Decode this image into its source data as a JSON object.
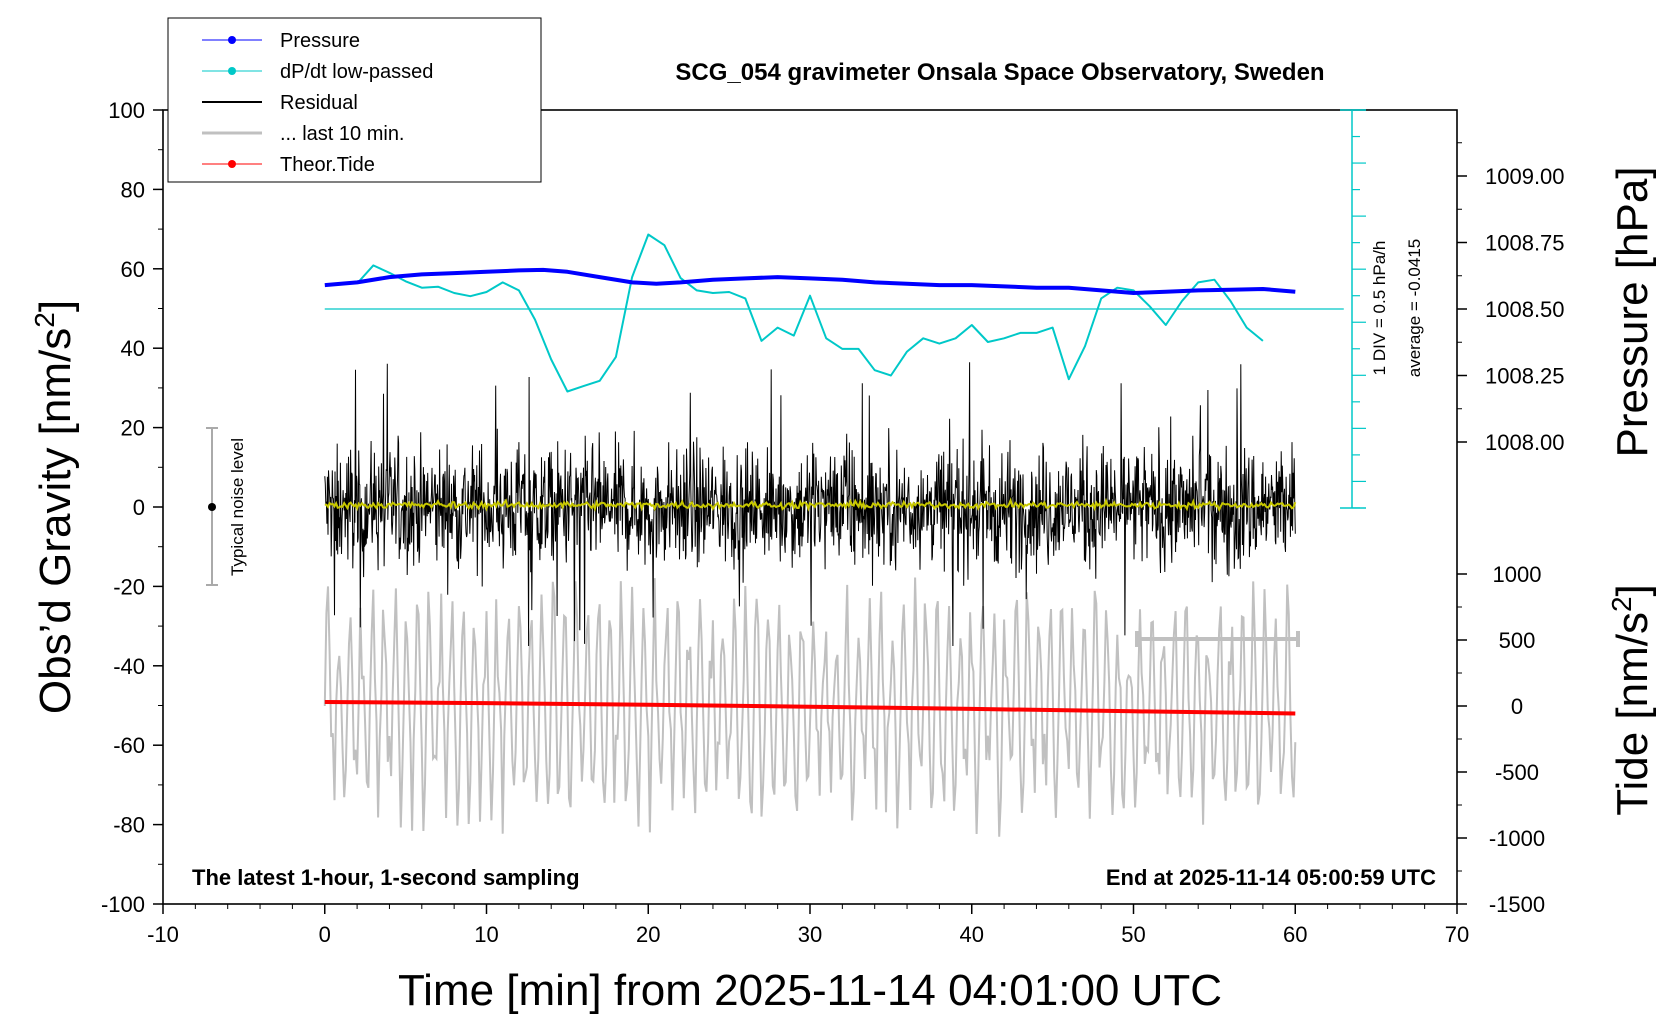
{
  "chart_data": {
    "type": "line",
    "title": "SCG_054 gravimeter Onsala Space Observatory, Sweden",
    "xlabel": "Time [min] from 2025-11-14 04:01:00 UTC",
    "ylabel_left": "Obs'd Gravity [nm/s²]",
    "ylabel_right_pressure": "Pressure [hPa]",
    "ylabel_right_tide": "Tide [nm/s²]",
    "xlim": [
      -10,
      70
    ],
    "ylim_left": [
      -100,
      100
    ],
    "x_ticks": [
      "-10",
      "0",
      "10",
      "20",
      "30",
      "40",
      "50",
      "60",
      "70"
    ],
    "y_ticks_left": [
      "100",
      "80",
      "60",
      "40",
      "20",
      "0",
      "-20",
      "-40",
      "-60",
      "-80",
      "-100"
    ],
    "pressure_ticks": [
      "1009.00",
      "1008.75",
      "1008.50",
      "1008.25",
      "1008.00"
    ],
    "tide_ticks": [
      "1000",
      "500",
      "0",
      "-500",
      "-1000",
      "-1500"
    ],
    "legend": {
      "position": "top-left",
      "entries": [
        {
          "label": "Pressure",
          "color": "#0000ff",
          "marker": true
        },
        {
          "label": "dP/dt low-passed",
          "color": "#00c8c8",
          "marker": true
        },
        {
          "label": "Residual",
          "color": "#000000",
          "marker": false
        },
        {
          "label": "... last 10 min.",
          "color": "#c0c0c0",
          "marker": false
        },
        {
          "label": "Theor.Tide",
          "color": "#ff0000",
          "marker": true
        }
      ]
    },
    "annotations": {
      "bottom_left": "The latest 1-hour, 1-second sampling",
      "bottom_right": "End at 2025-11-14 05:00:59 UTC",
      "noise_label": "Typical noise level",
      "dpdt_scale": "1 DIV = 0.5 hPa/h",
      "dpdt_average": "average = -0.0415"
    },
    "series": [
      {
        "name": "Pressure",
        "unit": "hPa",
        "color": "#0000ff",
        "x": [
          0,
          2,
          4,
          6,
          8,
          10,
          12,
          13.5,
          15,
          17,
          19,
          20.5,
          22,
          24,
          26,
          28,
          30,
          32,
          34,
          36,
          38,
          40,
          42,
          44,
          46,
          48,
          50,
          52,
          54,
          56,
          58,
          60
        ],
        "y": [
          1008.59,
          1008.6,
          1008.62,
          1008.63,
          1008.635,
          1008.64,
          1008.645,
          1008.647,
          1008.64,
          1008.62,
          1008.6,
          1008.595,
          1008.6,
          1008.61,
          1008.615,
          1008.62,
          1008.615,
          1008.61,
          1008.6,
          1008.595,
          1008.59,
          1008.59,
          1008.585,
          1008.58,
          1008.58,
          1008.57,
          1008.56,
          1008.565,
          1008.57,
          1008.572,
          1008.575,
          1008.565
        ]
      },
      {
        "name": "dP/dt low-passed",
        "color": "#00c8c8",
        "average": -0.0415,
        "x": [
          2,
          3,
          4,
          5,
          6,
          7,
          8,
          9,
          10,
          11,
          12,
          13,
          14,
          15,
          16,
          17,
          18,
          19,
          20,
          21,
          22,
          23,
          24,
          25,
          26,
          27,
          28,
          29,
          30,
          31,
          32,
          33,
          34,
          35,
          36,
          37,
          38,
          39,
          40,
          41,
          42,
          43,
          44,
          45,
          46,
          47,
          48,
          49,
          50,
          51,
          52,
          53,
          54,
          55,
          56,
          57,
          58
        ],
        "y": [
          0.48,
          0.82,
          0.68,
          0.52,
          0.4,
          0.42,
          0.3,
          0.24,
          0.32,
          0.5,
          0.35,
          -0.2,
          -0.95,
          -1.55,
          -1.45,
          -1.35,
          -0.9,
          0.6,
          1.4,
          1.2,
          0.58,
          0.35,
          0.3,
          0.32,
          0.2,
          -0.6,
          -0.35,
          -0.5,
          0.25,
          -0.55,
          -0.75,
          -0.75,
          -1.15,
          -1.25,
          -0.8,
          -0.55,
          -0.65,
          -0.55,
          -0.3,
          -0.62,
          -0.55,
          -0.45,
          -0.45,
          -0.35,
          -1.32,
          -0.7,
          0.2,
          0.4,
          0.35,
          0.05,
          -0.3,
          0.15,
          0.5,
          0.55,
          0.15,
          -0.35,
          -0.6
        ]
      },
      {
        "name": "Residual",
        "unit": "nm/s²",
        "color": "#000000",
        "x_range": [
          0,
          60
        ],
        "mean": 0,
        "typical_amplitude": 20,
        "max": 40,
        "min": -35
      },
      {
        "name": "... last 10 min.",
        "color": "#c0c0c0",
        "x_range": [
          50,
          60
        ],
        "typical_range": [
          -1000,
          1000
        ]
      },
      {
        "name": "Theor.Tide",
        "unit": "nm/s²",
        "color": "#ff0000",
        "x": [
          0,
          10,
          20,
          30,
          40,
          50,
          60
        ],
        "y": [
          30,
          22,
          10,
          -5,
          -22,
          -40,
          -57
        ]
      },
      {
        "name": "",
        "color": "#c8c800",
        "x_range": [
          0,
          60
        ],
        "mean": 0.5
      }
    ]
  },
  "colors": {
    "pressure": "#0000ff",
    "dpdt": "#00c8c8",
    "residual": "#000000",
    "last10": "#c0c0c0",
    "tide": "#ff0000",
    "smoothed": "#c8c800"
  }
}
